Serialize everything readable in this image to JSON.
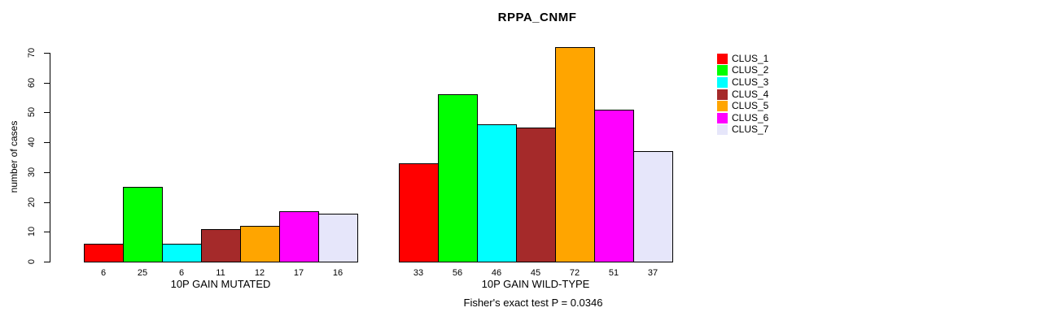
{
  "title": "RPPA_CNMF",
  "footer": "Fisher's exact test P = 0.0346",
  "chart_data": {
    "type": "bar",
    "title": "RPPA_CNMF",
    "xlabel": "",
    "ylabel": "number of cases",
    "ylim": [
      0,
      70
    ],
    "yticks": [
      0,
      10,
      20,
      30,
      40,
      50,
      60,
      70
    ],
    "grid": false,
    "legend_position": "right",
    "bar_value_labels_shown": true,
    "groups": [
      "10P GAIN MUTATED",
      "10P GAIN WILD-TYPE"
    ],
    "series": [
      {
        "name": "CLUS_1",
        "color": "#FF0000",
        "values": [
          6,
          33
        ]
      },
      {
        "name": "CLUS_2",
        "color": "#00FF00",
        "values": [
          25,
          56
        ]
      },
      {
        "name": "CLUS_3",
        "color": "#00FFFF",
        "values": [
          6,
          46
        ]
      },
      {
        "name": "CLUS_4",
        "color": "#A52A2A",
        "values": [
          11,
          45
        ]
      },
      {
        "name": "CLUS_5",
        "color": "#FFA500",
        "values": [
          12,
          72
        ]
      },
      {
        "name": "CLUS_6",
        "color": "#FF00FF",
        "values": [
          17,
          51
        ]
      },
      {
        "name": "CLUS_7",
        "color": "#E6E6FA",
        "values": [
          16,
          37
        ]
      }
    ],
    "annotation": "Fisher's exact test P = 0.0346"
  }
}
